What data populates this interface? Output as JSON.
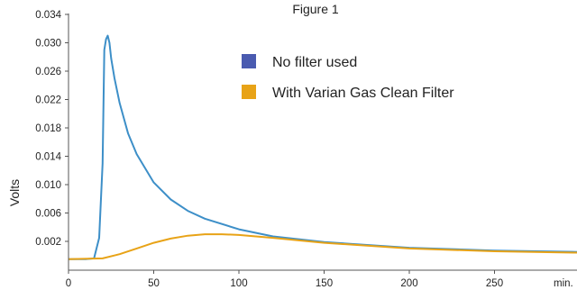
{
  "chart_data": {
    "type": "line",
    "title": "Figure 1",
    "xlabel": "",
    "ylabel": "Volts",
    "x_unit_label": "min.",
    "xlim": [
      0,
      300
    ],
    "ylim": [
      0,
      0.034
    ],
    "x_ticks": [
      0,
      50,
      100,
      150,
      200,
      250
    ],
    "x_tick_labels": [
      "0",
      "50",
      "100",
      "150",
      "200",
      "250"
    ],
    "y_ticks": [
      0.002,
      0.006,
      0.01,
      0.014,
      0.018,
      0.022,
      0.026,
      0.03,
      0.034
    ],
    "y_tick_labels": [
      "0.002",
      "0.006",
      "0.010",
      "0.014",
      "0.018",
      "0.022",
      "0.026",
      "0.030",
      "0.034"
    ],
    "grid": false,
    "legend_position": "top-right",
    "series": [
      {
        "name": "No filter used",
        "legend_color": "#4a5bb0",
        "line_color": "#3d8fc8",
        "x": [
          0,
          10,
          15,
          18,
          20,
          21,
          22,
          23,
          24,
          25,
          27,
          30,
          35,
          40,
          50,
          60,
          70,
          80,
          100,
          120,
          150,
          200,
          250,
          300
        ],
        "y": [
          -0.0005,
          -0.0005,
          -0.0004,
          0.0025,
          0.013,
          0.029,
          0.0305,
          0.031,
          0.03,
          0.0278,
          0.025,
          0.0215,
          0.0172,
          0.0143,
          0.0103,
          0.0079,
          0.0063,
          0.0052,
          0.0037,
          0.0027,
          0.0019,
          0.0011,
          0.0007,
          0.0005
        ]
      },
      {
        "name": "With Varian Gas Clean Filter",
        "legend_color": "#e8a317",
        "line_color": "#e8a317",
        "x": [
          0,
          20,
          30,
          40,
          50,
          60,
          70,
          80,
          90,
          100,
          120,
          150,
          200,
          250,
          300
        ],
        "y": [
          -0.0005,
          -0.0004,
          0.0002,
          0.001,
          0.0018,
          0.0024,
          0.0028,
          0.003,
          0.003,
          0.0029,
          0.0025,
          0.0018,
          0.001,
          0.0006,
          0.0004
        ]
      }
    ]
  }
}
